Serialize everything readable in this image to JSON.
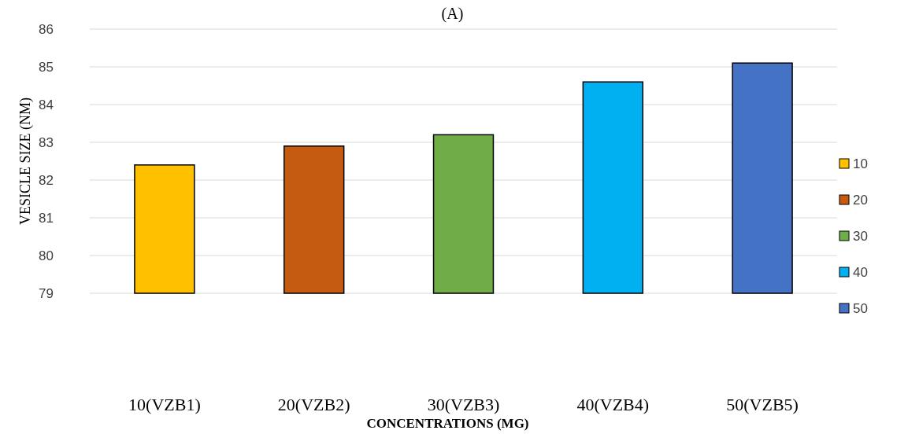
{
  "chart_data": {
    "type": "bar",
    "title": "(A)",
    "xlabel": "CONCENTRATIONS (MG)",
    "ylabel": "VESICLE SIZE (NM)",
    "categories": [
      "10(VZB1)",
      "20(VZB2)",
      "30(VZB3)",
      "40(VZB4)",
      "50(VZB5)"
    ],
    "stacked": true,
    "series": [
      {
        "name": "10",
        "color": "#ffc000",
        "values": [
          82.4,
          null,
          null,
          null,
          null
        ]
      },
      {
        "name": "20",
        "color": "#c55a11",
        "values": [
          null,
          82.9,
          null,
          null,
          null
        ]
      },
      {
        "name": "30",
        "color": "#70ad47",
        "values": [
          null,
          null,
          83.2,
          null,
          null
        ]
      },
      {
        "name": "40",
        "color": "#00b0f0",
        "values": [
          null,
          null,
          null,
          84.6,
          null
        ]
      },
      {
        "name": "50",
        "color": "#4472c4",
        "values": [
          null,
          null,
          null,
          null,
          85.1
        ]
      }
    ],
    "ylim": [
      79,
      86
    ],
    "yticks": [
      79,
      80,
      81,
      82,
      83,
      84,
      85,
      86
    ],
    "grid": "y",
    "legend": "right"
  }
}
